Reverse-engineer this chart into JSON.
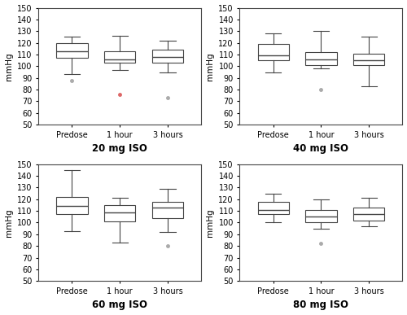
{
  "subplots": [
    {
      "title": "20 mg ISO",
      "boxes": [
        {
          "label": "Predose",
          "whislo": 93,
          "q1": 107,
          "med": 113,
          "q3": 120,
          "whishi": 125,
          "fliers_gray": [
            88
          ],
          "fliers_red": []
        },
        {
          "label": "1 hour",
          "whislo": 97,
          "q1": 103,
          "med": 106,
          "q3": 113,
          "whishi": 126,
          "fliers_gray": [],
          "fliers_red": [
            76
          ]
        },
        {
          "label": "3 hours",
          "whislo": 95,
          "q1": 103,
          "med": 108,
          "q3": 114,
          "whishi": 122,
          "fliers_gray": [
            73
          ],
          "fliers_red": []
        }
      ]
    },
    {
      "title": "40 mg ISO",
      "boxes": [
        {
          "label": "Predose",
          "whislo": 95,
          "q1": 105,
          "med": 109,
          "q3": 119,
          "whishi": 128,
          "fliers_gray": [],
          "fliers_red": []
        },
        {
          "label": "1 hour",
          "whislo": 98,
          "q1": 101,
          "med": 106,
          "q3": 112,
          "whishi": 130,
          "fliers_gray": [
            80
          ],
          "fliers_red": []
        },
        {
          "label": "3 hours",
          "whislo": 83,
          "q1": 101,
          "med": 105,
          "q3": 111,
          "whishi": 125,
          "fliers_gray": [],
          "fliers_red": []
        }
      ]
    },
    {
      "title": "60 mg ISO",
      "boxes": [
        {
          "label": "Predose",
          "whislo": 93,
          "q1": 107,
          "med": 114,
          "q3": 122,
          "whishi": 145,
          "fliers_gray": [],
          "fliers_red": []
        },
        {
          "label": "1 hour",
          "whislo": 83,
          "q1": 101,
          "med": 109,
          "q3": 115,
          "whishi": 121,
          "fliers_gray": [],
          "fliers_red": []
        },
        {
          "label": "3 hours",
          "whislo": 92,
          "q1": 104,
          "med": 113,
          "q3": 118,
          "whishi": 129,
          "fliers_gray": [
            80
          ],
          "fliers_red": []
        }
      ]
    },
    {
      "title": "80 mg ISO",
      "boxes": [
        {
          "label": "Predose",
          "whislo": 100,
          "q1": 107,
          "med": 111,
          "q3": 118,
          "whishi": 125,
          "fliers_gray": [],
          "fliers_red": []
        },
        {
          "label": "1 hour",
          "whislo": 95,
          "q1": 100,
          "med": 105,
          "q3": 111,
          "whishi": 120,
          "fliers_gray": [
            82
          ],
          "fliers_red": []
        },
        {
          "label": "3 hours",
          "whislo": 97,
          "q1": 102,
          "med": 107,
          "q3": 113,
          "whishi": 121,
          "fliers_gray": [],
          "fliers_red": []
        }
      ]
    }
  ],
  "ylim": [
    50,
    150
  ],
  "yticks": [
    50,
    60,
    70,
    80,
    90,
    100,
    110,
    120,
    130,
    140,
    150
  ],
  "ylabel": "mmHg",
  "xticklabels": [
    "Predose",
    "1 hour",
    "3 hours"
  ],
  "box_color": "white",
  "box_edge_color": "#444444",
  "median_color": "#444444",
  "whisker_color": "#444444",
  "cap_color": "#444444",
  "flier_color_gray": "#aaaaaa",
  "flier_color_red": "#dd6666",
  "background_color": "white",
  "title_fontsize": 8.5,
  "label_fontsize": 7.5,
  "tick_fontsize": 7
}
